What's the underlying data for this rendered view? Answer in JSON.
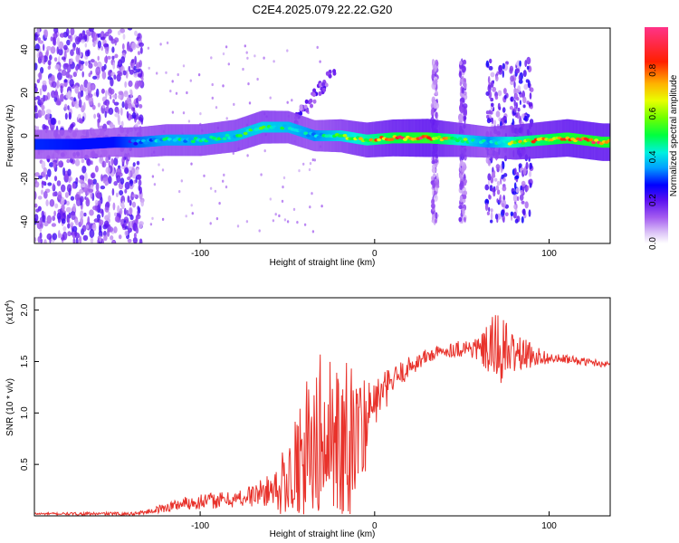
{
  "figure": {
    "title": "C2E4.2025.079.22.22.G20"
  },
  "chart_data": [
    {
      "type": "heatmap",
      "xlabel": "Height of straight line (km)",
      "ylabel": "Frequency (Hz)",
      "xlim": [
        -195,
        135
      ],
      "ylim": [
        -50,
        50
      ],
      "xticks": [
        -100,
        0,
        100
      ],
      "yticks": [
        -40,
        -20,
        0,
        20,
        40
      ],
      "colorbar": {
        "label": "Normalized spectral amplitude",
        "range": [
          0,
          1
        ],
        "ticks": [
          0.0,
          0.2,
          0.4,
          0.6,
          0.8
        ],
        "colors": [
          "#ffffff",
          "#c9a6f5",
          "#8a2be2",
          "#3c1cf5",
          "#0000ff",
          "#00ccff",
          "#00ffaa",
          "#33ff00",
          "#ccff00",
          "#ffee00",
          "#ff9900",
          "#ff0000",
          "#ff3366"
        ]
      },
      "ridge": {
        "description_points": [
          {
            "x": -190,
            "y": -4,
            "amp": 0.25
          },
          {
            "x": -170,
            "y": -4,
            "amp": 0.22
          },
          {
            "x": -150,
            "y": -3,
            "amp": 0.22
          },
          {
            "x": -135,
            "y": -3,
            "amp": 0.35
          },
          {
            "x": -120,
            "y": -2,
            "amp": 0.45
          },
          {
            "x": -100,
            "y": -2,
            "amp": 0.45
          },
          {
            "x": -80,
            "y": 0,
            "amp": 0.5
          },
          {
            "x": -65,
            "y": 4,
            "amp": 0.55
          },
          {
            "x": -50,
            "y": 4,
            "amp": 0.5
          },
          {
            "x": -35,
            "y": 0,
            "amp": 0.4
          },
          {
            "x": -20,
            "y": 0,
            "amp": 0.55
          },
          {
            "x": -5,
            "y": -2,
            "amp": 0.7
          },
          {
            "x": 10,
            "y": -1,
            "amp": 0.85
          },
          {
            "x": 30,
            "y": -1,
            "amp": 0.95
          },
          {
            "x": 50,
            "y": -2,
            "amp": 0.6
          },
          {
            "x": 65,
            "y": -3,
            "amp": 0.4
          },
          {
            "x": 80,
            "y": -3,
            "amp": 0.7
          },
          {
            "x": 95,
            "y": -2,
            "amp": 0.8
          },
          {
            "x": 110,
            "y": -1,
            "amp": 0.9
          },
          {
            "x": 130,
            "y": -3,
            "amp": 0.9
          }
        ]
      }
    },
    {
      "type": "line",
      "xlabel": "Height of straight line (km)",
      "ylabel": "SNR (10 * v/v)",
      "yscale_label": "(x10",
      "yscale_exp": "4",
      "yscale_close": ")",
      "xlim": [
        -195,
        135
      ],
      "ylim": [
        0,
        2.12
      ],
      "xticks": [
        -100,
        0,
        100
      ],
      "yticks": [
        0.5,
        1.0,
        1.5,
        2.0
      ],
      "ytick_labels": [
        "0.5",
        "1.0",
        "1.5",
        "2.0"
      ],
      "line_color": "#e8322b",
      "series": [
        {
          "x": [
            -195,
            -180,
            -160,
            -140,
            -130,
            -120,
            -110,
            -100,
            -90,
            -80,
            -70,
            -60,
            -55,
            -50,
            -45,
            -40,
            -35,
            -30,
            -25,
            -20,
            -15,
            -10,
            -5,
            0,
            5,
            10,
            15,
            20,
            25,
            30,
            35,
            40,
            45,
            50,
            55,
            60,
            65,
            70,
            75,
            80,
            85,
            90,
            95,
            100,
            110,
            120,
            135
          ],
          "values": [
            0.02,
            0.02,
            0.02,
            0.02,
            0.04,
            0.08,
            0.12,
            0.14,
            0.15,
            0.16,
            0.2,
            0.25,
            0.3,
            0.36,
            0.5,
            0.65,
            0.7,
            0.75,
            0.8,
            0.82,
            0.85,
            0.9,
            1.0,
            1.1,
            1.2,
            1.3,
            1.38,
            1.45,
            1.5,
            1.55,
            1.58,
            1.6,
            1.62,
            1.63,
            1.63,
            1.62,
            1.6,
            1.62,
            1.6,
            1.58,
            1.57,
            1.56,
            1.55,
            1.53,
            1.52,
            1.5,
            1.47
          ]
        }
      ],
      "noise_envelope": {
        "x": [
          -195,
          -130,
          -120,
          -100,
          -80,
          -60,
          -50,
          -40,
          -30,
          -20,
          -10,
          0,
          10,
          20,
          40,
          60,
          70,
          80,
          90,
          100,
          135
        ],
        "amp": [
          0.01,
          0.02,
          0.05,
          0.08,
          0.08,
          0.15,
          0.35,
          0.7,
          0.85,
          0.75,
          0.45,
          0.25,
          0.15,
          0.1,
          0.06,
          0.12,
          0.4,
          0.2,
          0.12,
          0.05,
          0.03
        ]
      }
    }
  ]
}
